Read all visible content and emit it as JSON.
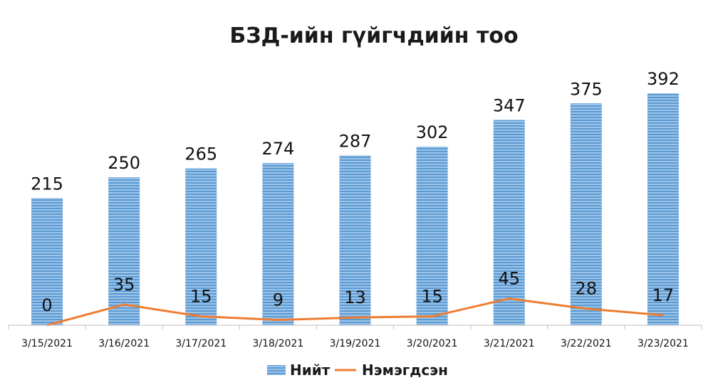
{
  "chart_data": {
    "type": "bar",
    "title": "БЗД-ийн гүйгчдийн тоо",
    "categories": [
      "3/15/2021",
      "3/16/2021",
      "3/17/2021",
      "3/18/2021",
      "3/19/2021",
      "3/20/2021",
      "3/21/2021",
      "3/22/2021",
      "3/23/2021"
    ],
    "series": [
      {
        "name": "Нийт",
        "kind": "bar",
        "color": "#5B9BD5",
        "values": [
          215,
          250,
          265,
          274,
          287,
          302,
          347,
          375,
          392
        ]
      },
      {
        "name": "Нэмэгдсэн",
        "kind": "line",
        "color": "#ED7D31",
        "values": [
          0,
          35,
          15,
          9,
          13,
          15,
          45,
          28,
          17
        ]
      }
    ],
    "xlabel": "",
    "ylabel": "",
    "ylim": [
      0,
      415
    ],
    "grid": false,
    "legend": "bottom"
  }
}
